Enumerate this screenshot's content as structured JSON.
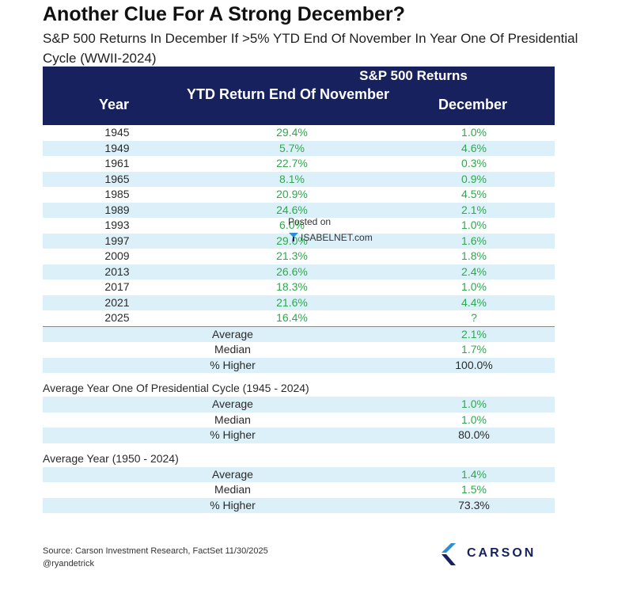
{
  "header": {
    "title": "Another Clue For A Strong December?",
    "subtitle": "S&P 500 Returns In December If  >5% YTD End Of November In Year One Of Presidential Cycle (WWII-2024)"
  },
  "chart_data": {
    "type": "table",
    "group_header": "S&P 500 Returns",
    "columns": [
      "Year",
      "YTD Return End Of November",
      "December"
    ],
    "rows": [
      {
        "year": "1945",
        "ytd": "29.4%",
        "dec": "1.0%"
      },
      {
        "year": "1949",
        "ytd": "5.7%",
        "dec": "4.6%"
      },
      {
        "year": "1961",
        "ytd": "22.7%",
        "dec": "0.3%"
      },
      {
        "year": "1965",
        "ytd": "8.1%",
        "dec": "0.9%"
      },
      {
        "year": "1985",
        "ytd": "20.9%",
        "dec": "4.5%"
      },
      {
        "year": "1989",
        "ytd": "24.6%",
        "dec": "2.1%"
      },
      {
        "year": "1993",
        "ytd": "6.0%",
        "dec": "1.0%"
      },
      {
        "year": "1997",
        "ytd": "29.0%",
        "dec": "1.6%"
      },
      {
        "year": "2009",
        "ytd": "21.3%",
        "dec": "1.8%"
      },
      {
        "year": "2013",
        "ytd": "26.6%",
        "dec": "2.4%"
      },
      {
        "year": "2017",
        "ytd": "18.3%",
        "dec": "1.0%"
      },
      {
        "year": "2021",
        "ytd": "21.6%",
        "dec": "4.4%"
      },
      {
        "year": "2025",
        "ytd": "16.4%",
        "dec": "?"
      }
    ],
    "summary": [
      {
        "label": "Average",
        "value": "2.1%"
      },
      {
        "label": "Median",
        "value": "1.7%"
      },
      {
        "label": "% Higher",
        "value": "100.0%"
      }
    ],
    "sections": [
      {
        "title": "Average Year One Of Presidential Cycle (1945 - 2024)",
        "stats": [
          {
            "label": "Average",
            "value": "1.0%"
          },
          {
            "label": "Median",
            "value": "1.0%"
          },
          {
            "label": "% Higher",
            "value": "80.0%"
          }
        ]
      },
      {
        "title": "Average Year (1950 - 2024)",
        "stats": [
          {
            "label": "Average",
            "value": "1.4%"
          },
          {
            "label": "Median",
            "value": "1.5%"
          },
          {
            "label": "% Higher",
            "value": "73.3%"
          }
        ]
      }
    ]
  },
  "watermark": {
    "posted": "Posted on",
    "site": "ISABELNET.com"
  },
  "footer": {
    "source": "Source: Carson Investment Research, FactSet 11/30/2025",
    "handle": "@ryandetrick",
    "logo": "CARSON"
  },
  "colors": {
    "header_bg": "#17215e",
    "shade": "#dcf0f9",
    "positive": "#2fa84f"
  }
}
